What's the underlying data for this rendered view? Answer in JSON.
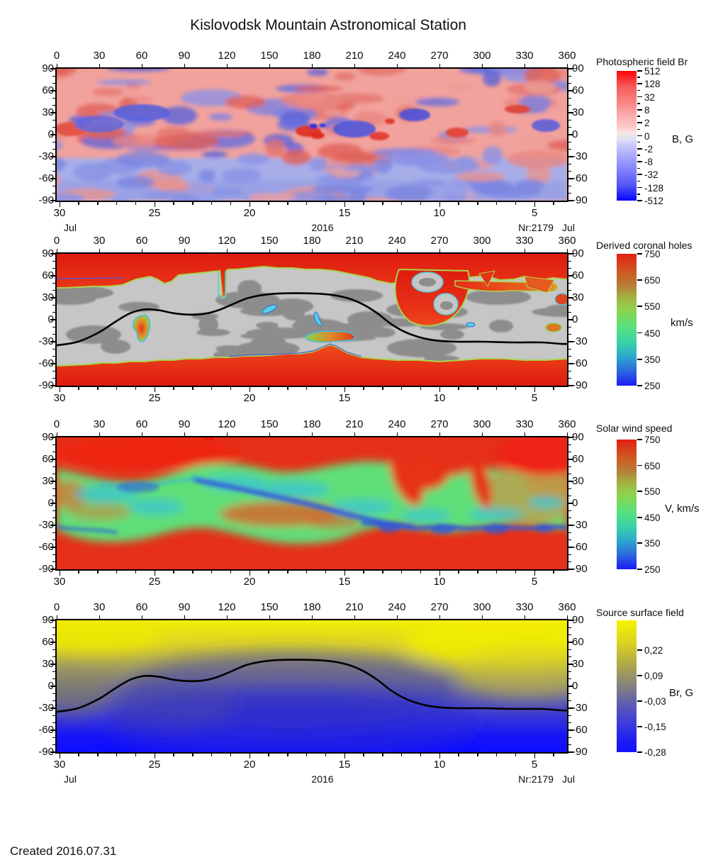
{
  "title": "Kislovodsk Mountain Astronomical Station",
  "footer": {
    "created": "Created  2016.07.31"
  },
  "axes": {
    "longitude_ticks": [
      "0",
      "30",
      "60",
      "90",
      "120",
      "150",
      "180",
      "210",
      "240",
      "270",
      "300",
      "330",
      "360"
    ],
    "latitude_ticks": [
      "90",
      "60",
      "30",
      "0",
      "-30",
      "-60",
      "-90"
    ],
    "date_ticks": [
      "30",
      "25",
      "20",
      "15",
      "10",
      "5"
    ],
    "month_left": "Jul",
    "year": "2016",
    "rotation": "Nr:2179",
    "month_right": "Jul"
  },
  "panels": [
    {
      "id": "photospheric-field",
      "colorbar_title": "Photospheric field Br",
      "unit": "B, G",
      "cb_ticks": [
        "512",
        "128",
        "32",
        "8",
        "2",
        "0",
        "-2",
        "-8",
        "-32",
        "-128",
        "-512"
      ],
      "show_date_annotation": true
    },
    {
      "id": "coronal-holes",
      "colorbar_title": "Derived coronal holes",
      "unit": "km/s",
      "cb_ticks": [
        "750",
        "650",
        "550",
        "450",
        "350",
        "250"
      ],
      "show_date_annotation": false
    },
    {
      "id": "solar-wind-speed",
      "colorbar_title": "Solar wind speed",
      "unit": "V, km/s",
      "cb_ticks": [
        "750",
        "650",
        "550",
        "450",
        "350",
        "250"
      ],
      "show_date_annotation": false
    },
    {
      "id": "source-surface-field",
      "colorbar_title": "Source surface field",
      "unit": "Br, G",
      "cb_ticks": [
        "0,22",
        "0,09",
        "-0,03",
        "-0,15",
        "-0,28"
      ],
      "show_date_annotation": true
    }
  ],
  "colors": {
    "positive_red": "#e63019",
    "negative_blue": "#0606fb",
    "zero_gray": "#e6e6e6",
    "map_light_gray": "#c6c6c6",
    "map_dark_gray": "#8d8d8d",
    "fast_wind_red": "#e63019",
    "slow_wind_green": "#5fdf78",
    "current_sheet_blue": "#2b4fdd",
    "source_positive_yellow": "#f2ef04",
    "source_negative_blue": "#0d0dff",
    "neutral_line": "#000000"
  },
  "chart_data": [
    {
      "type": "heatmap",
      "name": "photospheric_field_Br",
      "colorbar": {
        "title": "Photospheric field Br",
        "unit": "B, G",
        "scale": "symmetric-log",
        "tick_labels": [
          "512",
          "128",
          "32",
          "8",
          "2",
          "0",
          "-2",
          "-8",
          "-32",
          "-128",
          "-512"
        ],
        "top_color": "#fb0505",
        "zero_color": "#e6e6e6",
        "bottom_color": "#0606fb"
      },
      "x_axis_top": {
        "ticks_deg": [
          0,
          30,
          60,
          90,
          120,
          150,
          180,
          210,
          240,
          270,
          300,
          330,
          360
        ]
      },
      "y_axis": {
        "ticks_deg": [
          90,
          60,
          30,
          0,
          -30,
          -60,
          -90
        ]
      },
      "time_axis": {
        "tick_days": [
          30,
          25,
          20,
          15,
          10,
          5
        ],
        "month_left": "Jul",
        "year": "2016",
        "rotation_number": "Nr:2179",
        "month_right": "Jul"
      },
      "description": "Mottled synoptic map of the radial photospheric magnetic field: positive polarity (light red) dominates the northern hemisphere, negative polarity (light blue) dominates the southern hemisphere; strong mixed-polarity active regions (saturated red and blue spots) cluster near the equator at longitudes 140-230."
    },
    {
      "type": "heatmap",
      "name": "derived_coronal_holes",
      "colorbar": {
        "title": "Derived coronal holes",
        "unit": "km/s",
        "range": [
          250,
          750
        ],
        "tick_labels": [
          "750",
          "650",
          "550",
          "450",
          "350",
          "250"
        ]
      },
      "x_axis_top": {
        "ticks_deg": [
          0,
          30,
          60,
          90,
          120,
          150,
          180,
          210,
          240,
          270,
          300,
          330,
          360
        ]
      },
      "y_axis": {
        "ticks_deg": [
          90,
          60,
          30,
          0,
          -30,
          -60,
          -90
        ]
      },
      "time_axis": {
        "tick_days": [
          30,
          25,
          20,
          15,
          10,
          5
        ]
      },
      "neutral_line": [
        [
          0,
          -35
        ],
        [
          15,
          -30
        ],
        [
          30,
          -17
        ],
        [
          42,
          -2
        ],
        [
          52,
          9
        ],
        [
          62,
          14
        ],
        [
          72,
          13
        ],
        [
          82,
          9
        ],
        [
          93,
          7
        ],
        [
          104,
          8
        ],
        [
          114,
          13
        ],
        [
          124,
          21
        ],
        [
          134,
          29
        ],
        [
          146,
          34
        ],
        [
          160,
          36
        ],
        [
          178,
          36
        ],
        [
          194,
          34
        ],
        [
          206,
          29
        ],
        [
          216,
          21
        ],
        [
          226,
          9
        ],
        [
          236,
          -6
        ],
        [
          246,
          -17
        ],
        [
          256,
          -24
        ],
        [
          266,
          -28
        ],
        [
          282,
          -30
        ],
        [
          300,
          -30
        ],
        [
          322,
          -31
        ],
        [
          342,
          -31
        ],
        [
          356,
          -33
        ],
        [
          360,
          -33
        ]
      ],
      "features": {
        "polar_caps": "red high-speed polar coronal holes poleward of about +55 and -60 deg latitude",
        "mid_band": "gray slow-wind belt (light gray with dark gray patches) between the polar caps",
        "low_latitude_holes_lon_lat": [
          [
            61,
            -7
          ],
          [
            117,
            53
          ],
          [
            150,
            13
          ],
          [
            184,
            1
          ],
          [
            193,
            -24
          ],
          [
            262,
            45
          ],
          [
            272,
            28
          ],
          [
            310,
            37
          ],
          [
            356,
            8
          ],
          [
            352,
            -12
          ]
        ]
      }
    },
    {
      "type": "heatmap",
      "name": "solar_wind_speed",
      "colorbar": {
        "title": "Solar wind speed",
        "unit": "V, km/s",
        "range": [
          250,
          750
        ],
        "tick_labels": [
          "750",
          "650",
          "550",
          "450",
          "350",
          "250"
        ]
      },
      "x_axis_top": {
        "ticks_deg": [
          0,
          30,
          60,
          90,
          120,
          150,
          180,
          210,
          240,
          270,
          300,
          330,
          360
        ]
      },
      "y_axis": {
        "ticks_deg": [
          90,
          60,
          30,
          0,
          -30,
          -60,
          -90
        ]
      },
      "time_axis": {
        "tick_days": [
          30,
          25,
          20,
          15,
          10,
          5
        ]
      },
      "description": "Fast wind (red, ~700-750 km/s) over both poles and intruding at longitudes 240-310 north; undulating slow-wind belt (green/cyan, 350-500 km/s) along the current sheet with slowest blue filaments (~300 km/s), orange patch near lon 120-200 south of equator, khaki moderate speeds at lon 300-360."
    },
    {
      "type": "heatmap",
      "name": "source_surface_field",
      "colorbar": {
        "title": "Source surface field",
        "unit": "Br, G",
        "range": [
          -0.28,
          0.28
        ],
        "tick_labels": [
          "0,22",
          "0,09",
          "-0,03",
          "-0,15",
          "-0,28"
        ]
      },
      "x_axis_top": {
        "ticks_deg": [
          0,
          30,
          60,
          90,
          120,
          150,
          180,
          210,
          240,
          270,
          300,
          330,
          360
        ]
      },
      "y_axis": {
        "ticks_deg": [
          90,
          60,
          30,
          0,
          -30,
          -60,
          -90
        ]
      },
      "time_axis": {
        "tick_days": [
          30,
          25,
          20,
          15,
          10,
          5
        ],
        "month_left": "Jul",
        "year": "2016",
        "rotation_number": "Nr:2179",
        "month_right": "Jul"
      },
      "neutral_line": [
        [
          0,
          -35
        ],
        [
          15,
          -30
        ],
        [
          30,
          -17
        ],
        [
          42,
          -2
        ],
        [
          52,
          9
        ],
        [
          62,
          14
        ],
        [
          72,
          13
        ],
        [
          82,
          9
        ],
        [
          93,
          7
        ],
        [
          104,
          8
        ],
        [
          114,
          13
        ],
        [
          124,
          21
        ],
        [
          134,
          29
        ],
        [
          146,
          34
        ],
        [
          160,
          36
        ],
        [
          178,
          36
        ],
        [
          194,
          34
        ],
        [
          206,
          29
        ],
        [
          216,
          21
        ],
        [
          226,
          9
        ],
        [
          236,
          -6
        ],
        [
          246,
          -17
        ],
        [
          256,
          -24
        ],
        [
          266,
          -28
        ],
        [
          282,
          -30
        ],
        [
          300,
          -30
        ],
        [
          322,
          -31
        ],
        [
          342,
          -31
        ],
        [
          356,
          -33
        ],
        [
          360,
          -33
        ]
      ],
      "description": "Smooth dipole-like source-surface field: positive (yellow) in the north, negative (blue) in the south, separated by the black neutral line."
    }
  ]
}
